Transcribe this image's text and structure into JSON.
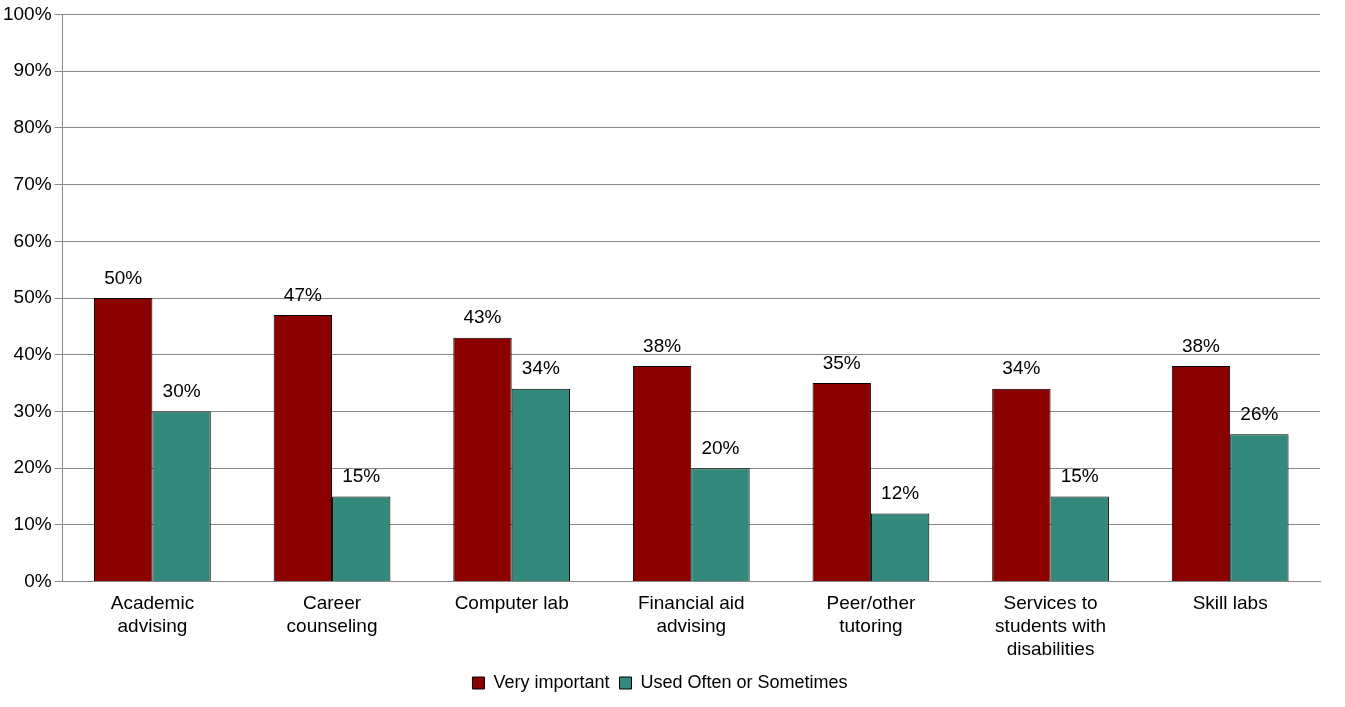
{
  "chart_data": {
    "type": "bar",
    "categories": [
      "Academic advising",
      "Career counseling",
      "Computer lab",
      "Financial aid advising",
      "Peer/other tutoring",
      "Services to students with disabilities",
      "Skill labs"
    ],
    "series": [
      {
        "name": "Very important",
        "color": "#8b0000",
        "values": [
          50,
          47,
          43,
          38,
          35,
          34,
          38
        ],
        "value_labels": [
          "50%",
          "47%",
          "43%",
          "38%",
          "35%",
          "34%",
          "38%"
        ]
      },
      {
        "name": "Used Often or Sometimes",
        "color": "#338a7c",
        "values": [
          30,
          15,
          34,
          20,
          12,
          15,
          26
        ],
        "value_labels": [
          "30%",
          "15%",
          "34%",
          "20%",
          "12%",
          "15%",
          "26%"
        ]
      }
    ],
    "ylim": [
      0,
      100
    ],
    "yticks": [
      {
        "value": 0,
        "label": "0%"
      },
      {
        "value": 10,
        "label": "10%"
      },
      {
        "value": 20,
        "label": "20%"
      },
      {
        "value": 30,
        "label": "30%"
      },
      {
        "value": 40,
        "label": "40%"
      },
      {
        "value": 50,
        "label": "50%"
      },
      {
        "value": 60,
        "label": "60%"
      },
      {
        "value": 70,
        "label": "70%"
      },
      {
        "value": 80,
        "label": "80%"
      },
      {
        "value": 90,
        "label": "90%"
      },
      {
        "value": 100,
        "label": "100%"
      }
    ],
    "grid": "y",
    "legend": "bottom"
  }
}
